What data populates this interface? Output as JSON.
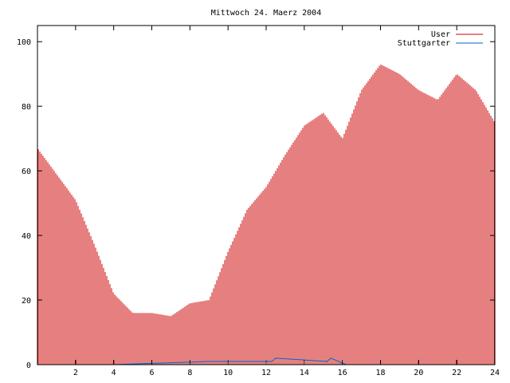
{
  "chart_data": {
    "type": "bar",
    "title": "Mittwoch 24. Maerz 2004",
    "xlim": [
      0,
      24
    ],
    "ylim": [
      0,
      105
    ],
    "x_ticks": [
      2,
      4,
      6,
      8,
      10,
      12,
      14,
      16,
      18,
      20,
      22,
      24
    ],
    "y_ticks": [
      0,
      20,
      40,
      60,
      80,
      100
    ],
    "grid": false,
    "legend_position": "top-right",
    "series": [
      {
        "name": "User",
        "color": "#cc0000",
        "x": [
          0,
          1,
          2,
          3,
          4,
          5,
          6,
          7,
          8,
          9,
          10,
          11,
          12,
          13,
          14,
          15,
          16,
          17,
          18,
          19,
          20,
          21,
          22,
          23,
          24
        ],
        "values": [
          67,
          59,
          51,
          37,
          22,
          16,
          16,
          15,
          19,
          20,
          35,
          48,
          55,
          65,
          74,
          78,
          70,
          85,
          93,
          90,
          85,
          82,
          90,
          85,
          75
        ]
      },
      {
        "name": "Stuttgarter",
        "color": "#0066cc",
        "x": [
          0,
          4,
          9,
          12.3,
          12.5,
          15.2,
          15.4,
          16.2,
          24
        ],
        "values": [
          0,
          0,
          1,
          1,
          2,
          1,
          2,
          0,
          0
        ]
      }
    ]
  }
}
